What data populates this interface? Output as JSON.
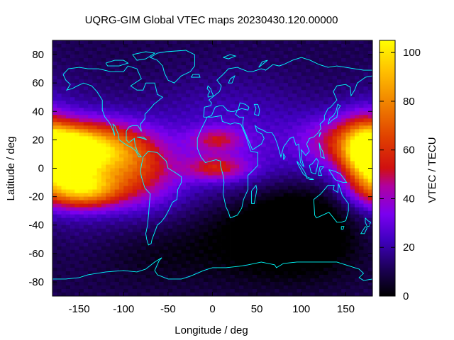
{
  "title": "UQRG-GIM Global VTEC maps 20230430.120.00000",
  "axes": {
    "xlabel": "Longitude / deg",
    "ylabel": "Latitude / deg",
    "colorbar_label": "VTEC / TECU"
  },
  "chart_data": {
    "type": "heatmap",
    "xlim": [
      -180,
      180
    ],
    "ylim": [
      -90,
      90
    ],
    "clim": [
      0,
      105
    ],
    "x_ticks": [
      "-150",
      "-100",
      "-50",
      "0",
      "50",
      "100",
      "150"
    ],
    "x_tick_values": [
      -150,
      -100,
      -50,
      0,
      50,
      100,
      150
    ],
    "y_ticks": [
      "80",
      "60",
      "40",
      "20",
      "0",
      "-20",
      "-40",
      "-60",
      "-80"
    ],
    "y_tick_values": [
      80,
      60,
      40,
      20,
      0,
      -20,
      -40,
      -60,
      -80
    ],
    "colorbar_ticks": [
      "100",
      "80",
      "60",
      "40",
      "20",
      "0"
    ],
    "colorbar_tick_values": [
      100,
      80,
      60,
      40,
      20,
      0
    ],
    "colormap": "black-purple-red-orange-yellow",
    "coastline_color": "#00ffff",
    "background_vtec": 25,
    "features": [
      {
        "lon": -165,
        "lat": 8,
        "w": 22,
        "h": 12,
        "vtec": 95
      },
      {
        "lon": -145,
        "lat": -15,
        "w": 30,
        "h": 9,
        "vtec": 90
      },
      {
        "lon": -150,
        "lat": 15,
        "w": 45,
        "h": 12,
        "vtec": 70
      },
      {
        "lon": -120,
        "lat": 10,
        "w": 35,
        "h": 14,
        "vtec": 60
      },
      {
        "lon": -80,
        "lat": -5,
        "w": 30,
        "h": 16,
        "vtec": 50
      },
      {
        "lon": 5,
        "lat": 0,
        "w": 25,
        "h": 6,
        "vtec": 55
      },
      {
        "lon": 5,
        "lat": 20,
        "w": 20,
        "h": 6,
        "vtec": 50
      },
      {
        "lon": 170,
        "lat": 10,
        "w": 18,
        "h": 18,
        "vtec": 70
      },
      {
        "lon": 140,
        "lat": 20,
        "w": 30,
        "h": 12,
        "vtec": 45
      },
      {
        "lon": 30,
        "lat": -35,
        "w": 60,
        "h": 25,
        "vtec": 10
      },
      {
        "lon": 90,
        "lat": -50,
        "w": 60,
        "h": 20,
        "vtec": 8
      },
      {
        "lon": 100,
        "lat": -30,
        "w": 40,
        "h": 18,
        "vtec": 12
      },
      {
        "lon": -60,
        "lat": -60,
        "w": 50,
        "h": 15,
        "vtec": 18
      }
    ]
  }
}
